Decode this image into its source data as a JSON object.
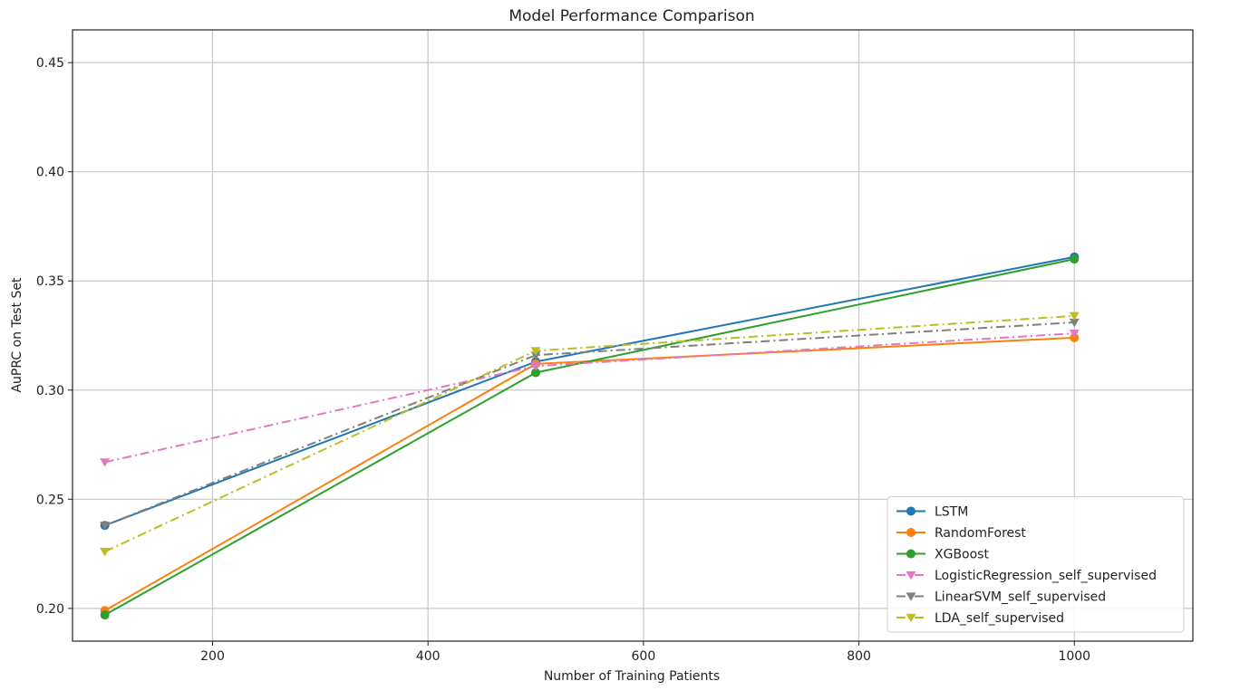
{
  "chart_data": {
    "type": "line",
    "title": "Model Performance Comparison",
    "xlabel": "Number of Training Patients",
    "ylabel": "AuPRC on Test Set",
    "xlim": [
      70,
      1110
    ],
    "ylim": [
      0.185,
      0.465
    ],
    "xticks": [
      200,
      400,
      600,
      800,
      1000
    ],
    "yticks": [
      0.2,
      0.25,
      0.3,
      0.35,
      0.4,
      0.45
    ],
    "xtick_labels": [
      "200",
      "400",
      "600",
      "800",
      "1000"
    ],
    "ytick_labels": [
      "0.20",
      "0.25",
      "0.30",
      "0.35",
      "0.40",
      "0.45"
    ],
    "grid": true,
    "legend_position": "lower-right",
    "x": [
      100,
      500,
      1000
    ],
    "series": [
      {
        "name": "LSTM",
        "values": [
          0.238,
          0.313,
          0.361
        ],
        "color": "#1f77b4",
        "marker": "circle",
        "dash": "solid"
      },
      {
        "name": "RandomForest",
        "values": [
          0.199,
          0.312,
          0.324
        ],
        "color": "#ff7f0e",
        "marker": "circle",
        "dash": "solid"
      },
      {
        "name": "XGBoost",
        "values": [
          0.197,
          0.308,
          0.36
        ],
        "color": "#2ca02c",
        "marker": "circle",
        "dash": "solid"
      },
      {
        "name": "LogisticRegression_self_supervised",
        "values": [
          0.267,
          0.311,
          0.326
        ],
        "color": "#e377c2",
        "marker": "triangle-down",
        "dash": "dashdot"
      },
      {
        "name": "LinearSVM_self_supervised",
        "values": [
          0.238,
          0.316,
          0.331
        ],
        "color": "#7f7f7f",
        "marker": "triangle-down",
        "dash": "dashdot"
      },
      {
        "name": "LDA_self_supervised",
        "values": [
          0.226,
          0.318,
          0.334
        ],
        "color": "#bcbd22",
        "marker": "triangle-down",
        "dash": "dashdot"
      }
    ]
  }
}
